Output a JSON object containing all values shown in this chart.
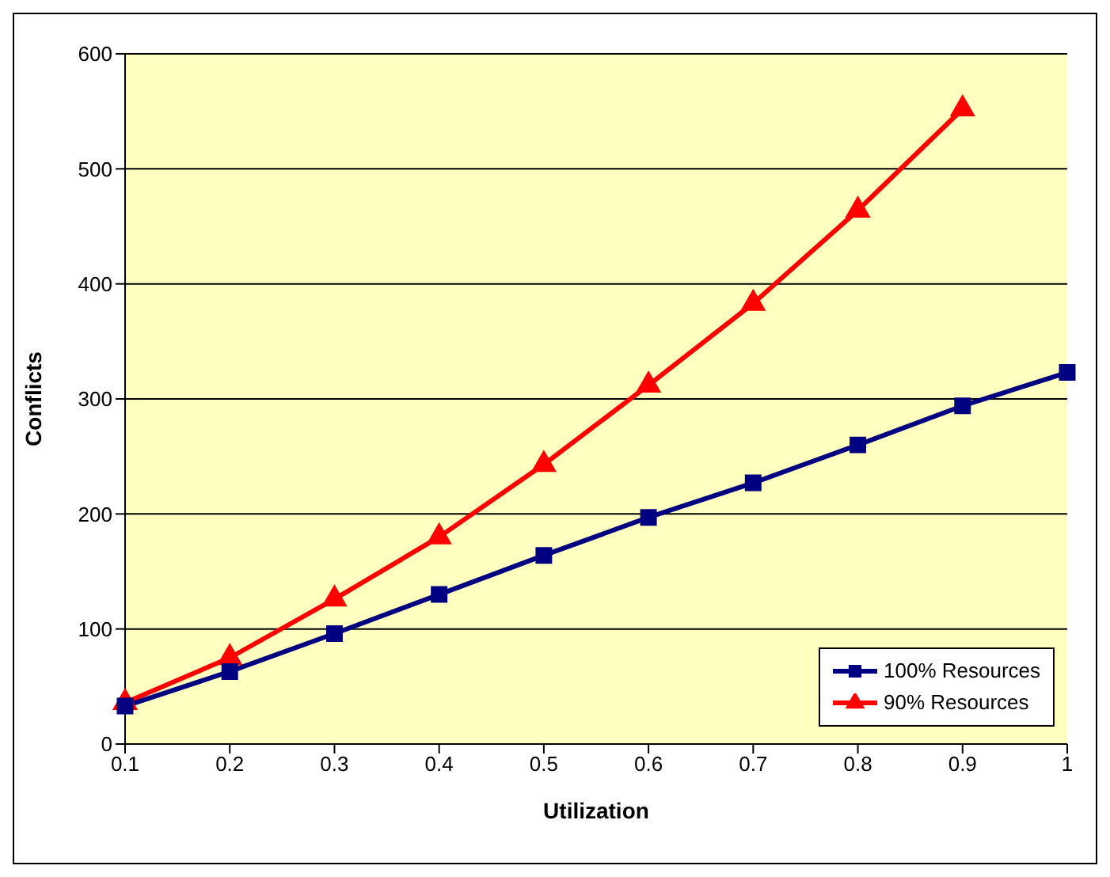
{
  "chart_data": {
    "type": "line",
    "xlabel": "Utilization",
    "ylabel": "Conflicts",
    "categories": [
      "0.1",
      "0.2",
      "0.3",
      "0.4",
      "0.5",
      "0.6",
      "0.7",
      "0.8",
      "0.9",
      "1"
    ],
    "series": [
      {
        "name": "100% Resources",
        "color": "#000080",
        "marker": "square",
        "values": [
          33,
          63,
          96,
          130,
          164,
          197,
          227,
          260,
          294,
          323
        ]
      },
      {
        "name": "90% Resources",
        "color": "#ff0000",
        "marker": "triangle",
        "values": [
          36,
          75,
          126,
          180,
          243,
          312,
          383,
          464,
          552,
          null
        ]
      }
    ],
    "ylim": [
      0,
      600
    ],
    "yticks": [
      0,
      100,
      200,
      300,
      400,
      500,
      600
    ],
    "grid": "y",
    "legend": "bottom right"
  }
}
